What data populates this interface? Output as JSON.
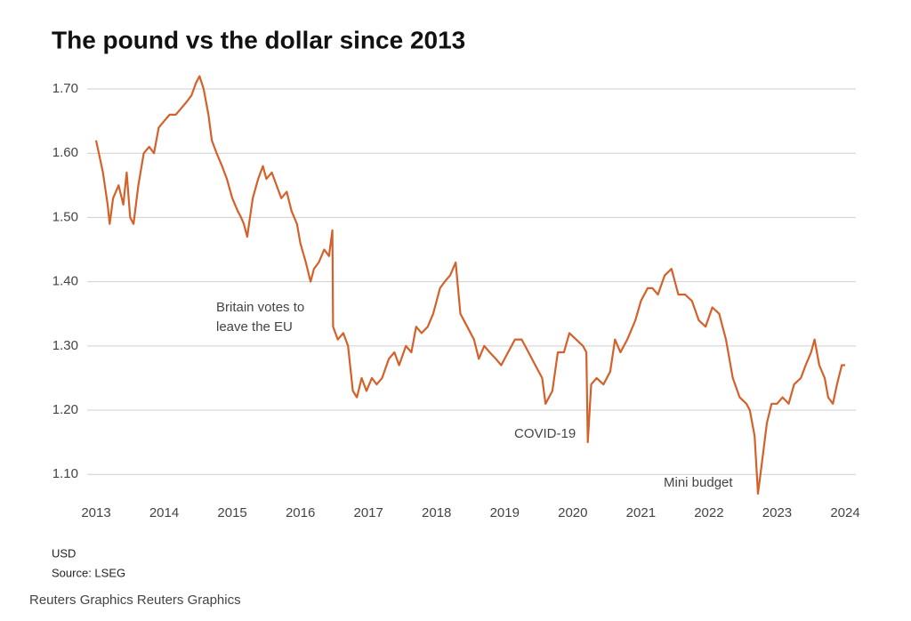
{
  "chart_data": {
    "type": "line",
    "title": "The pound vs the dollar since 2013",
    "unit": "USD",
    "source": "Source: LSEG",
    "credit": "Reuters Graphics Reuters Graphics",
    "annotations": [
      "Britain votes to",
      "leave the EU",
      "COVID-19",
      "Mini budget"
    ],
    "color": "#d4602a",
    "grid": true,
    "xlim": [
      2013,
      2024
    ],
    "xticks": [
      2013,
      2014,
      2015,
      2016,
      2017,
      2018,
      2019,
      2020,
      2021,
      2022,
      2023,
      2024
    ],
    "ylim": [
      1.06,
      1.72
    ],
    "yticks": [
      {
        "value": 1.1,
        "label": "1.10"
      },
      {
        "value": 1.2,
        "label": "1.20"
      },
      {
        "value": 1.3,
        "label": "1.30"
      },
      {
        "value": 1.4,
        "label": "1.40"
      },
      {
        "value": 1.5,
        "label": "1.50"
      },
      {
        "value": 1.6,
        "label": "1.60"
      },
      {
        "value": 1.7,
        "label": "1.70"
      }
    ],
    "x": [
      2013.0,
      2013.04,
      2013.1,
      2013.17,
      2013.2,
      2013.25,
      2013.33,
      2013.4,
      2013.45,
      2013.5,
      2013.55,
      2013.62,
      2013.7,
      2013.78,
      2013.85,
      2013.92,
      2014.0,
      2014.08,
      2014.17,
      2014.25,
      2014.33,
      2014.4,
      2014.47,
      2014.52,
      2014.58,
      2014.65,
      2014.7,
      2014.77,
      2014.85,
      2014.92,
      2015.0,
      2015.08,
      2015.13,
      2015.17,
      2015.22,
      2015.3,
      2015.38,
      2015.45,
      2015.5,
      2015.58,
      2015.65,
      2015.72,
      2015.8,
      2015.87,
      2015.95,
      2016.0,
      2016.08,
      2016.15,
      2016.2,
      2016.27,
      2016.35,
      2016.42,
      2016.47,
      2016.48,
      2016.55,
      2016.63,
      2016.7,
      2016.77,
      2016.83,
      2016.9,
      2016.97,
      2017.05,
      2017.12,
      2017.2,
      2017.3,
      2017.38,
      2017.45,
      2017.55,
      2017.63,
      2017.7,
      2017.78,
      2017.87,
      2017.95,
      2018.05,
      2018.12,
      2018.2,
      2018.28,
      2018.35,
      2018.45,
      2018.55,
      2018.62,
      2018.7,
      2018.78,
      2018.87,
      2018.95,
      2019.05,
      2019.15,
      2019.25,
      2019.35,
      2019.45,
      2019.55,
      2019.6,
      2019.7,
      2019.78,
      2019.87,
      2019.95,
      2020.05,
      2020.15,
      2020.2,
      2020.22,
      2020.27,
      2020.35,
      2020.45,
      2020.55,
      2020.62,
      2020.7,
      2020.8,
      2020.92,
      2021.0,
      2021.1,
      2021.17,
      2021.25,
      2021.35,
      2021.45,
      2021.55,
      2021.65,
      2021.75,
      2021.85,
      2021.95,
      2022.05,
      2022.15,
      2022.25,
      2022.35,
      2022.45,
      2022.55,
      2022.6,
      2022.67,
      2022.72,
      2022.78,
      2022.85,
      2022.92,
      2023.0,
      2023.08,
      2023.17,
      2023.25,
      2023.35,
      2023.42,
      2023.5,
      2023.55,
      2023.62,
      2023.7,
      2023.75,
      2023.82,
      2023.88,
      2023.95,
      2024.0
    ],
    "values": [
      1.62,
      1.6,
      1.57,
      1.52,
      1.49,
      1.53,
      1.55,
      1.52,
      1.57,
      1.5,
      1.49,
      1.55,
      1.6,
      1.61,
      1.6,
      1.64,
      1.65,
      1.66,
      1.66,
      1.67,
      1.68,
      1.69,
      1.71,
      1.72,
      1.7,
      1.66,
      1.62,
      1.6,
      1.58,
      1.56,
      1.53,
      1.51,
      1.5,
      1.49,
      1.47,
      1.53,
      1.56,
      1.58,
      1.56,
      1.57,
      1.55,
      1.53,
      1.54,
      1.51,
      1.49,
      1.46,
      1.43,
      1.4,
      1.42,
      1.43,
      1.45,
      1.44,
      1.48,
      1.33,
      1.31,
      1.32,
      1.3,
      1.23,
      1.22,
      1.25,
      1.23,
      1.25,
      1.24,
      1.25,
      1.28,
      1.29,
      1.27,
      1.3,
      1.29,
      1.33,
      1.32,
      1.33,
      1.35,
      1.39,
      1.4,
      1.41,
      1.43,
      1.35,
      1.33,
      1.31,
      1.28,
      1.3,
      1.29,
      1.28,
      1.27,
      1.29,
      1.31,
      1.31,
      1.29,
      1.27,
      1.25,
      1.21,
      1.23,
      1.29,
      1.29,
      1.32,
      1.31,
      1.3,
      1.29,
      1.15,
      1.24,
      1.25,
      1.24,
      1.26,
      1.31,
      1.29,
      1.31,
      1.34,
      1.37,
      1.39,
      1.39,
      1.38,
      1.41,
      1.42,
      1.38,
      1.38,
      1.37,
      1.34,
      1.33,
      1.36,
      1.35,
      1.31,
      1.25,
      1.22,
      1.21,
      1.2,
      1.16,
      1.07,
      1.12,
      1.18,
      1.21,
      1.21,
      1.22,
      1.21,
      1.24,
      1.25,
      1.27,
      1.29,
      1.31,
      1.27,
      1.25,
      1.22,
      1.21,
      1.24,
      1.27,
      1.27
    ]
  }
}
